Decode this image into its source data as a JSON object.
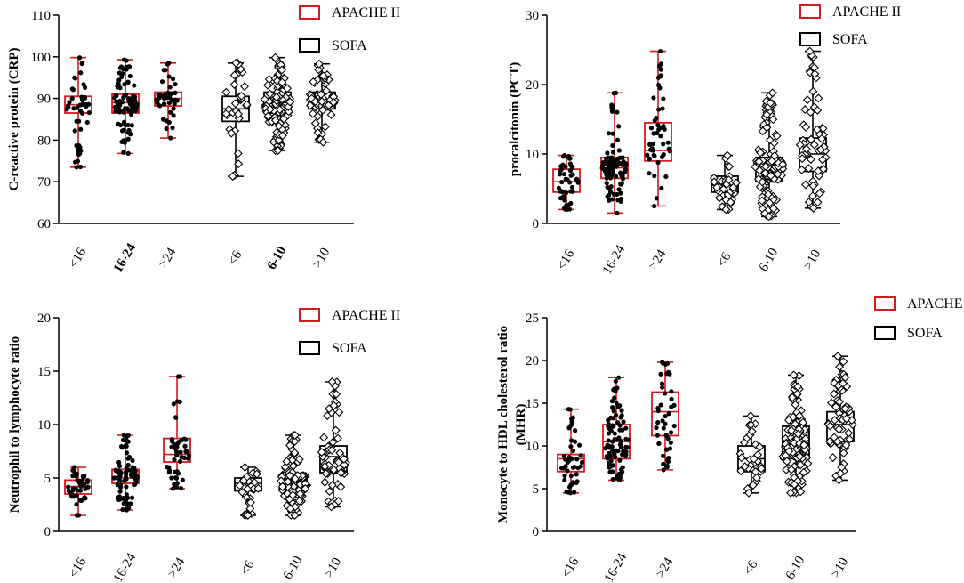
{
  "figure": {
    "legend_apache": "APACHE II",
    "legend_sofa": "SOFA",
    "colors": {
      "apache": "#d7191c",
      "sofa": "#000000",
      "dot": "#000000"
    }
  },
  "chart_data": [
    {
      "type": "box",
      "id": "crp",
      "ylabel": "C-reactive protein (CRP)",
      "ylim": [
        60,
        110
      ],
      "yticks": [
        60,
        70,
        80,
        90,
        100,
        110
      ],
      "legend_position": "top-right",
      "groups": [
        {
          "label": "<16",
          "series": "APACHE II",
          "min": 73.5,
          "q1": 86.5,
          "median": 88.5,
          "q3": 90.5,
          "max": 99.8,
          "n": 45
        },
        {
          "label": "16-24",
          "series": "APACHE II",
          "min": 76.8,
          "q1": 86.5,
          "median": 89.0,
          "q3": 91.0,
          "max": 99.3,
          "n": 90
        },
        {
          "label": ">24",
          "series": "APACHE II",
          "min": 80.5,
          "q1": 88.2,
          "median": 90.0,
          "q3": 91.5,
          "max": 98.5,
          "n": 45
        },
        {
          "label": "<6",
          "series": "SOFA",
          "min": 71.3,
          "q1": 84.5,
          "median": 87.5,
          "q3": 90.5,
          "max": 98.5,
          "n": 30
        },
        {
          "label": "6-10",
          "series": "SOFA",
          "min": 77.5,
          "q1": 86.5,
          "median": 89.0,
          "q3": 91.5,
          "max": 99.8,
          "n": 120
        },
        {
          "label": ">10",
          "series": "SOFA",
          "min": 79.5,
          "q1": 87.5,
          "median": 89.5,
          "q3": 91.5,
          "max": 98.3,
          "n": 60
        }
      ]
    },
    {
      "type": "box",
      "id": "pct",
      "ylabel": "procalcitonin (PCT)",
      "ylim": [
        0,
        30
      ],
      "yticks": [
        0,
        10,
        20,
        30
      ],
      "legend_position": "top-right",
      "groups": [
        {
          "label": "<16",
          "series": "APACHE II",
          "min": 2.0,
          "q1": 4.5,
          "median": 6.0,
          "q3": 7.8,
          "max": 9.8,
          "n": 45
        },
        {
          "label": "16-24",
          "series": "APACHE II",
          "min": 1.5,
          "q1": 6.5,
          "median": 8.0,
          "q3": 9.5,
          "max": 18.8,
          "n": 90
        },
        {
          "label": ">24",
          "series": "APACHE II",
          "min": 2.5,
          "q1": 9.0,
          "median": 10.5,
          "q3": 14.5,
          "max": 24.8,
          "n": 45
        },
        {
          "label": "<6",
          "series": "SOFA",
          "min": 2.0,
          "q1": 4.5,
          "median": 5.5,
          "q3": 6.8,
          "max": 9.8,
          "n": 30
        },
        {
          "label": "6-10",
          "series": "SOFA",
          "min": 1.0,
          "q1": 6.0,
          "median": 8.0,
          "q3": 9.5,
          "max": 18.8,
          "n": 120
        },
        {
          "label": ">10",
          "series": "SOFA",
          "min": 2.2,
          "q1": 7.5,
          "median": 10.0,
          "q3": 12.3,
          "max": 24.8,
          "n": 60
        }
      ]
    },
    {
      "type": "box",
      "id": "nlr",
      "ylabel": "Neutrophil to lymphocyte ratio",
      "ylim": [
        0,
        20
      ],
      "yticks": [
        0,
        5,
        10,
        15,
        20
      ],
      "legend_position": "top-right",
      "groups": [
        {
          "label": "<16",
          "series": "APACHE II",
          "min": 1.5,
          "q1": 3.5,
          "median": 4.2,
          "q3": 4.8,
          "max": 6.0,
          "n": 45
        },
        {
          "label": "16-24",
          "series": "APACHE II",
          "min": 2.0,
          "q1": 4.5,
          "median": 5.0,
          "q3": 5.8,
          "max": 9.0,
          "n": 90
        },
        {
          "label": ">24",
          "series": "APACHE II",
          "min": 4.0,
          "q1": 6.5,
          "median": 7.2,
          "q3": 8.7,
          "max": 14.5,
          "n": 45
        },
        {
          "label": "<6",
          "series": "SOFA",
          "min": 1.5,
          "q1": 3.8,
          "median": 4.5,
          "q3": 5.0,
          "max": 6.0,
          "n": 30
        },
        {
          "label": "6-10",
          "series": "SOFA",
          "min": 1.5,
          "q1": 3.8,
          "median": 4.5,
          "q3": 5.3,
          "max": 9.0,
          "n": 120
        },
        {
          "label": ">10",
          "series": "SOFA",
          "min": 2.3,
          "q1": 5.5,
          "median": 7.0,
          "q3": 8.0,
          "max": 14.0,
          "n": 60
        }
      ]
    },
    {
      "type": "box",
      "id": "mhr",
      "ylabel": "Monocyte to HDL cholesterol ratio (MHR)",
      "ylabel_lines": [
        "Monocyte to HDL cholesterol ratio",
        "(MHR)"
      ],
      "ylim": [
        0,
        25
      ],
      "yticks": [
        0,
        5,
        10,
        15,
        20,
        25
      ],
      "legend_position": "top-right",
      "groups": [
        {
          "label": "<16",
          "series": "APACHE II",
          "min": 4.5,
          "q1": 7.0,
          "median": 8.5,
          "q3": 9.0,
          "max": 14.3,
          "n": 45
        },
        {
          "label": "16-24",
          "series": "APACHE II",
          "min": 6.0,
          "q1": 8.5,
          "median": 10.5,
          "q3": 12.5,
          "max": 18.0,
          "n": 90
        },
        {
          "label": ">24",
          "series": "APACHE II",
          "min": 7.2,
          "q1": 11.2,
          "median": 14.0,
          "q3": 16.3,
          "max": 19.8,
          "n": 45
        },
        {
          "label": "<6",
          "series": "SOFA",
          "min": 4.5,
          "q1": 7.0,
          "median": 8.5,
          "q3": 10.0,
          "max": 13.5,
          "n": 30
        },
        {
          "label": "6-10",
          "series": "SOFA",
          "min": 4.5,
          "q1": 8.5,
          "median": 9.0,
          "q3": 12.3,
          "max": 18.3,
          "n": 120
        },
        {
          "label": ">10",
          "series": "SOFA",
          "min": 6.0,
          "q1": 10.5,
          "median": 12.5,
          "q3": 14.0,
          "max": 20.5,
          "n": 60
        }
      ]
    }
  ]
}
